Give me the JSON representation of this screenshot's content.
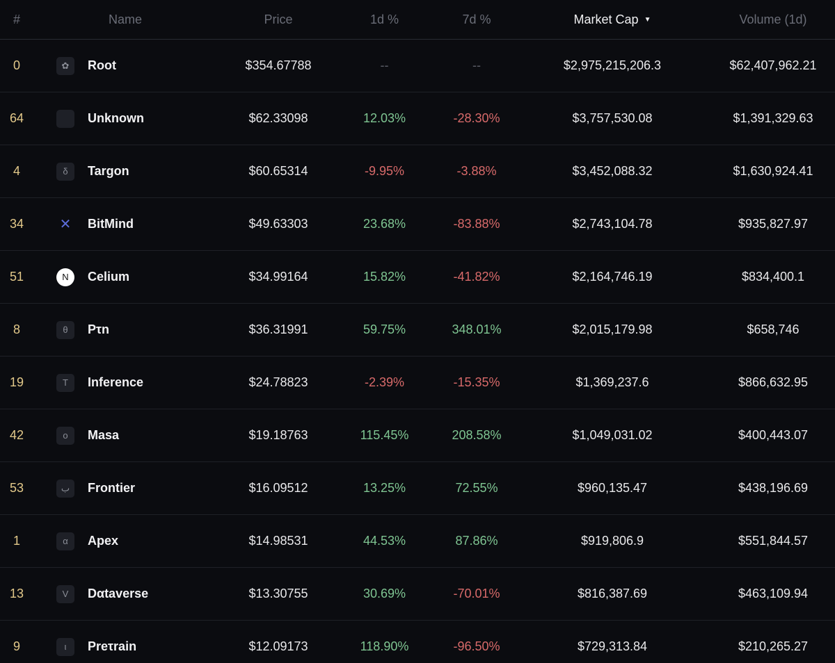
{
  "headers": {
    "rank": "#",
    "name": "Name",
    "price": "Price",
    "d1": "1d %",
    "d7": "7d %",
    "mcap": "Market Cap",
    "mcap_sort": "▼",
    "vol": "Volume (1d)"
  },
  "rows": [
    {
      "rank": "0",
      "icon": "✿",
      "icon_name": "flower-icon",
      "name": "Root",
      "price": "$354.67788",
      "d1": "--",
      "d7": "--",
      "mcap": "$2,975,215,206.3",
      "vol": "$62,407,962.21"
    },
    {
      "rank": "64",
      "icon": "",
      "icon_name": "blank-icon",
      "name": "Unknown",
      "price": "$62.33098",
      "d1": "12.03%",
      "d7": "-28.30%",
      "mcap": "$3,757,530.08",
      "vol": "$1,391,329.63"
    },
    {
      "rank": "4",
      "icon": "δ",
      "icon_name": "delta-icon",
      "name": "Targon",
      "price": "$60.65314",
      "d1": "-9.95%",
      "d7": "-3.88%",
      "mcap": "$3,452,088.32",
      "vol": "$1,630,924.41"
    },
    {
      "rank": "34",
      "icon": "✕",
      "icon_name": "bitmind-icon",
      "name": "BitMind",
      "price": "$49.63303",
      "d1": "23.68%",
      "d7": "-83.88%",
      "mcap": "$2,743,104.78",
      "vol": "$935,827.97"
    },
    {
      "rank": "51",
      "icon": "N",
      "icon_name": "celium-icon",
      "name": "Celium",
      "price": "$34.99164",
      "d1": "15.82%",
      "d7": "-41.82%",
      "mcap": "$2,164,746.19",
      "vol": "$834,400.1"
    },
    {
      "rank": "8",
      "icon": "θ",
      "icon_name": "theta-icon",
      "name": "Pτn",
      "price": "$36.31991",
      "d1": "59.75%",
      "d7": "348.01%",
      "mcap": "$2,015,179.98",
      "vol": "$658,746"
    },
    {
      "rank": "19",
      "icon": "T",
      "icon_name": "tau-icon",
      "name": "Inference",
      "price": "$24.78823",
      "d1": "-2.39%",
      "d7": "-15.35%",
      "mcap": "$1,369,237.6",
      "vol": "$866,632.95"
    },
    {
      "rank": "42",
      "icon": "o",
      "icon_name": "omicron-icon",
      "name": "Masa",
      "price": "$19.18763",
      "d1": "115.45%",
      "d7": "208.58%",
      "mcap": "$1,049,031.02",
      "vol": "$400,443.07"
    },
    {
      "rank": "53",
      "icon": "ب",
      "icon_name": "beh-icon",
      "name": "Frontier",
      "price": "$16.09512",
      "d1": "13.25%",
      "d7": "72.55%",
      "mcap": "$960,135.47",
      "vol": "$438,196.69"
    },
    {
      "rank": "1",
      "icon": "α",
      "icon_name": "alpha-icon",
      "name": "Apex",
      "price": "$14.98531",
      "d1": "44.53%",
      "d7": "87.86%",
      "mcap": "$919,806.9",
      "vol": "$551,844.57"
    },
    {
      "rank": "13",
      "icon": "V",
      "icon_name": "nu-icon",
      "name": "Dαtaverse",
      "price": "$13.30755",
      "d1": "30.69%",
      "d7": "-70.01%",
      "mcap": "$816,387.69",
      "vol": "$463,109.94"
    },
    {
      "rank": "9",
      "icon": "ι",
      "icon_name": "iota-icon",
      "name": "Preτrain",
      "price": "$12.09173",
      "d1": "118.90%",
      "d7": "-96.50%",
      "mcap": "$729,313.84",
      "vol": "$210,265.27"
    }
  ]
}
